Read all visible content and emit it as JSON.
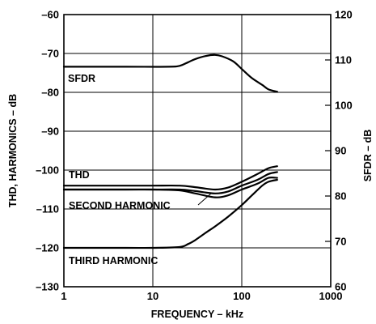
{
  "chart_data": {
    "type": "line",
    "title": "",
    "xlabel": "FREQUENCY – kHz",
    "ylabel_left": "THD, HARMONICS – dB",
    "ylabel_right": "SFDR – dB",
    "x_scale": "log",
    "xlim": [
      1,
      1000
    ],
    "ylim_left": [
      -130,
      -60
    ],
    "ylim_right": [
      60,
      120
    ],
    "grid": true,
    "x_ticks": [
      1,
      10,
      100,
      1000
    ],
    "x_tick_labels": [
      "1",
      "10",
      "100",
      "1000"
    ],
    "y_left_ticks": [
      -60,
      -70,
      -80,
      -90,
      -100,
      -110,
      -120,
      -130
    ],
    "y_left_tick_labels": [
      "–60",
      "–70",
      "–80",
      "–90",
      "–100",
      "–110",
      "–120",
      "–130"
    ],
    "y_right_ticks": [
      120,
      110,
      100,
      90,
      80,
      70,
      60
    ],
    "y_right_tick_labels": [
      "120",
      "110",
      "100",
      "90",
      "80",
      "70",
      "60"
    ],
    "series": [
      {
        "name": "SFDR",
        "axis": "right",
        "x": [
          1,
          5,
          15,
          20,
          25,
          30,
          40,
          50,
          60,
          80,
          100,
          130,
          170,
          200,
          250
        ],
        "y": [
          108.5,
          108.5,
          108.5,
          108.7,
          109.5,
          110.2,
          110.9,
          111.1,
          110.8,
          109.7,
          108.0,
          106.0,
          104.5,
          103.5,
          103.0
        ]
      },
      {
        "name": "THD",
        "axis": "left",
        "x": [
          1,
          5,
          10,
          20,
          30,
          50,
          70,
          100,
          150,
          200,
          250
        ],
        "y": [
          -104.0,
          -104.0,
          -104.0,
          -104.0,
          -104.4,
          -105.0,
          -104.5,
          -103.0,
          -101.0,
          -99.5,
          -99.0
        ]
      },
      {
        "name": "",
        "axis": "left",
        "x": [
          1,
          5,
          10,
          20,
          30,
          50,
          70,
          100,
          150,
          200,
          250
        ],
        "y": [
          -105.0,
          -105.0,
          -105.0,
          -105.0,
          -105.4,
          -106.0,
          -105.5,
          -104.0,
          -102.5,
          -101.0,
          -100.5
        ]
      },
      {
        "name": "SECOND HARMONIC",
        "axis": "left",
        "x": [
          1,
          5,
          10,
          20,
          30,
          50,
          70,
          100,
          150,
          200,
          250
        ],
        "y": [
          -105.0,
          -105.0,
          -105.0,
          -105.2,
          -106.0,
          -107.0,
          -106.5,
          -105.0,
          -103.5,
          -102.0,
          -102.0
        ]
      },
      {
        "name": "THIRD HARMONIC",
        "axis": "left",
        "x": [
          1,
          5,
          10,
          20,
          25,
          30,
          40,
          50,
          70,
          100,
          130,
          170,
          200,
          250
        ],
        "y": [
          -120.0,
          -120.0,
          -120.0,
          -119.8,
          -119.0,
          -118.0,
          -116.0,
          -114.5,
          -112.0,
          -109.0,
          -106.5,
          -104.0,
          -103.0,
          -102.5
        ]
      }
    ],
    "annotations": [
      {
        "text": "SFDR",
        "series": "SFDR"
      },
      {
        "text": "THD",
        "series": "THD"
      },
      {
        "text": "SECOND HARMONIC",
        "series": "SECOND HARMONIC"
      },
      {
        "text": "THIRD HARMONIC",
        "series": "THIRD HARMONIC"
      }
    ]
  }
}
